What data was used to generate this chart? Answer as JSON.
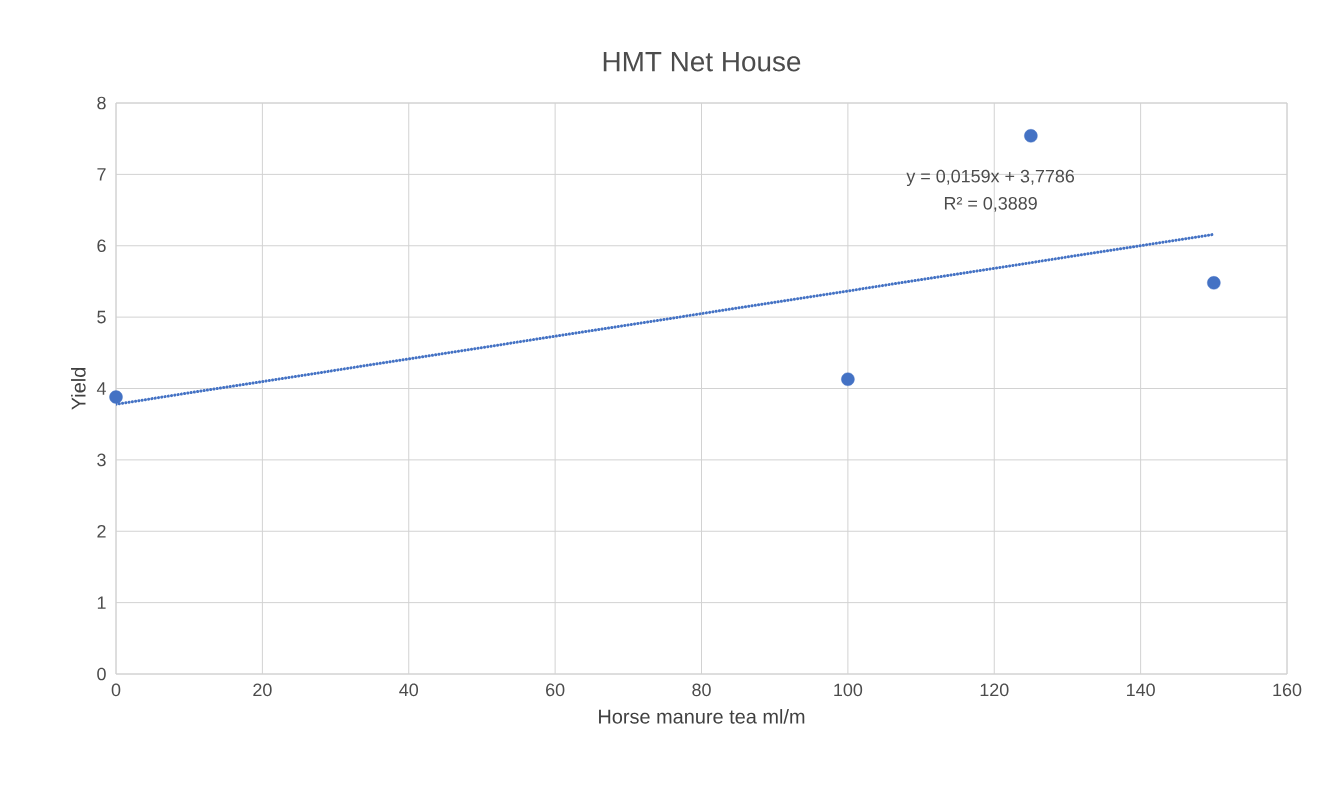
{
  "chart_data": {
    "type": "scatter",
    "title": "HMT Net House",
    "xlabel": "Horse manure tea ml/m",
    "ylabel": "Yield",
    "series": [
      {
        "type": "scatter",
        "color": "#4472c4",
        "marker": "circle",
        "x": [
          0,
          100,
          125,
          150
        ],
        "values": [
          3.88,
          4.13,
          7.54,
          5.48
        ]
      },
      {
        "type": "line",
        "color": "#4472c4",
        "line_style": "dotted",
        "marker": "none",
        "x": [
          0,
          150
        ],
        "values": [
          3.78,
          6.16
        ]
      }
    ],
    "annotations": [
      "y = 0,0159x + 3,7786",
      "R² = 0,3889"
    ],
    "xlim": [
      0,
      160
    ],
    "xticks": [
      0,
      20,
      40,
      60,
      80,
      100,
      120,
      140,
      160
    ],
    "ylim": [
      0,
      8
    ],
    "yticks": [
      0,
      1,
      2,
      3,
      4,
      5,
      6,
      7,
      8
    ],
    "grid": true
  }
}
